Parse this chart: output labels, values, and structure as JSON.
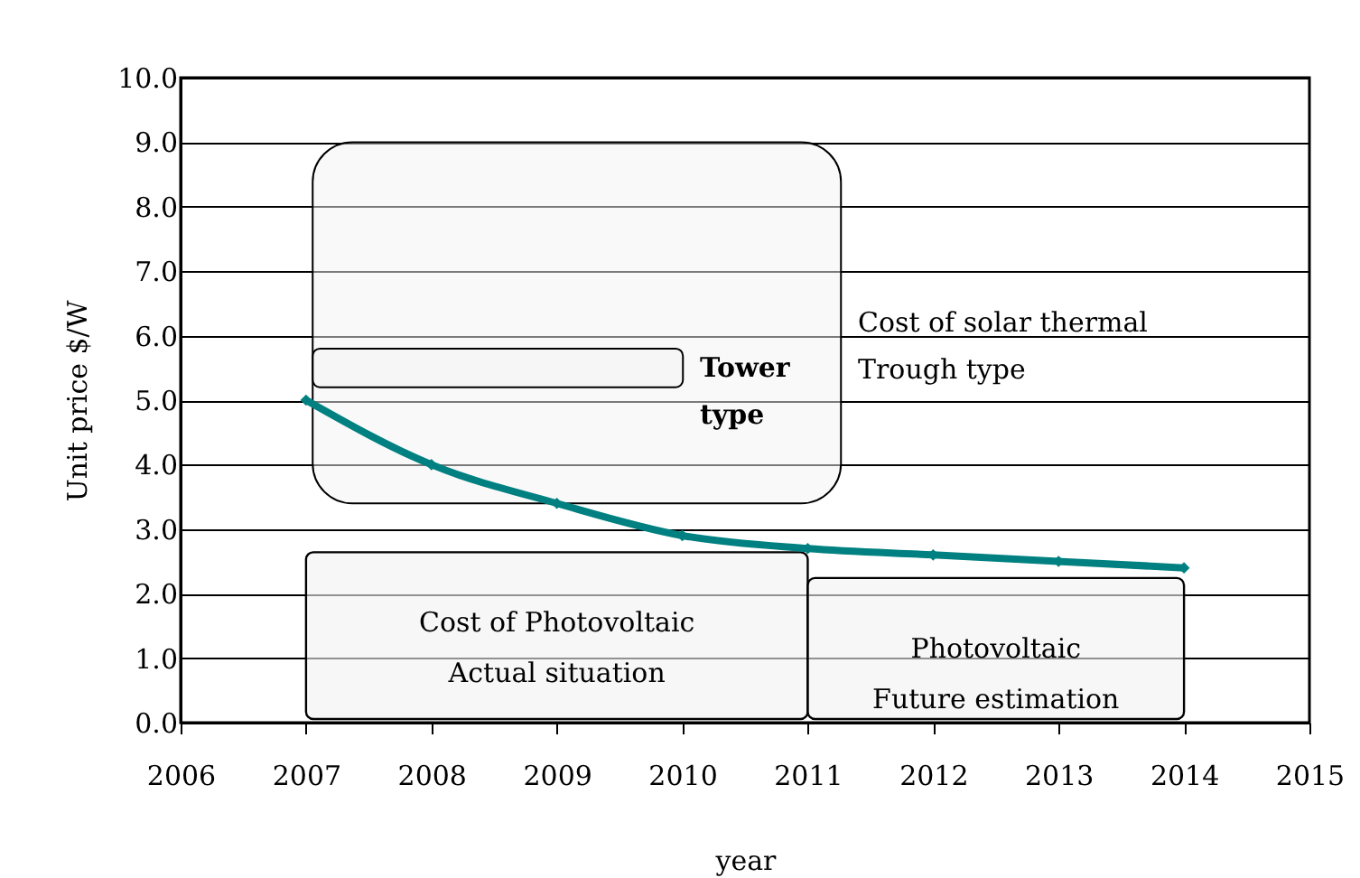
{
  "chart_data": {
    "type": "line",
    "xlabel": "year",
    "ylabel": "Unit price $/W",
    "x": [
      2007,
      2008,
      2009,
      2010,
      2011,
      2012,
      2013,
      2014
    ],
    "series": [
      {
        "color": "#008080",
        "values": [
          5.0,
          4.0,
          3.4,
          2.9,
          2.7,
          2.6,
          2.5,
          2.4
        ]
      }
    ],
    "marker": "diamond",
    "line_style": "solid",
    "grid": "y",
    "xlim": [
      2006,
      2015
    ],
    "xticks": [
      2006,
      2007,
      2008,
      2009,
      2010,
      2011,
      2012,
      2013,
      2014,
      2015
    ],
    "ylim": [
      0,
      10
    ],
    "yticks": [
      {
        "value": 0,
        "label": "0.0"
      },
      {
        "value": 1,
        "label": "1.0"
      },
      {
        "value": 2,
        "label": "2.0"
      },
      {
        "value": 3,
        "label": "3.0"
      },
      {
        "value": 4,
        "label": "4.0"
      },
      {
        "value": 5,
        "label": "5.0"
      },
      {
        "value": 6,
        "label": "6.0"
      },
      {
        "value": 7,
        "label": "7.0"
      },
      {
        "value": 8,
        "label": "8.0"
      },
      {
        "value": 9,
        "label": "9.0"
      },
      {
        "value": 10,
        "label": "10.0"
      }
    ],
    "bands": [
      {
        "axis": "y",
        "from": 3.4,
        "to": 9.0,
        "label": "Cost of solar thermal\nTrough type"
      },
      {
        "axis": "y",
        "from": 5.2,
        "to": 5.8,
        "label": "Tower\ntype"
      },
      {
        "axis": "x",
        "from": 2007,
        "to": 2011,
        "label": "Cost of Photovoltaic\nActual situation"
      },
      {
        "axis": "x",
        "from": 2011,
        "to": 2014,
        "label": "Photovoltaic\nFuture estimation"
      }
    ]
  }
}
